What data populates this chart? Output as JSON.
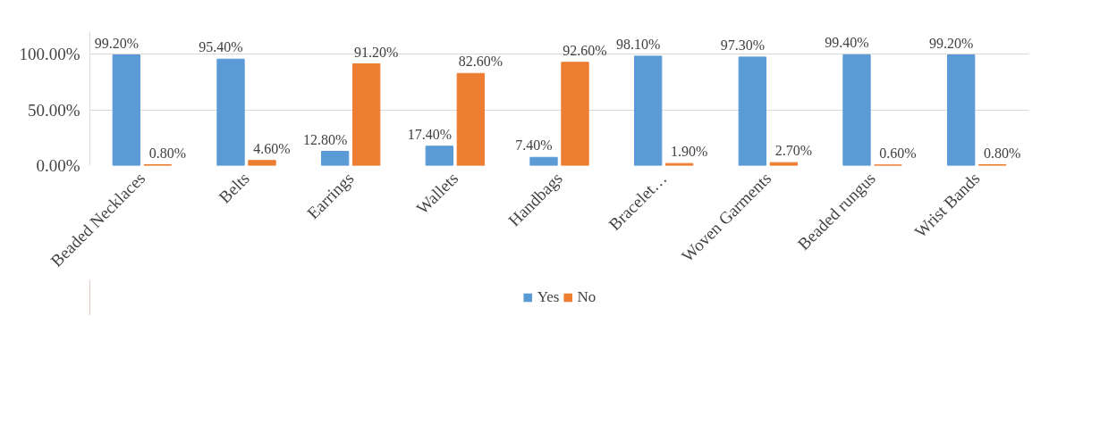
{
  "chart_data": {
    "type": "bar",
    "categories": [
      "Beaded Necklaces",
      "Belts",
      "Earrings",
      "Wallets",
      "Handbags",
      "Bracelet…",
      "Woven Garments",
      "Beaded rungus",
      "Wrist Bands"
    ],
    "series": [
      {
        "name": "Yes",
        "color": "#5b9bd5",
        "values": [
          99.2,
          95.4,
          12.8,
          17.4,
          7.4,
          98.1,
          97.3,
          99.4,
          99.2
        ],
        "value_labels": [
          "99.20%",
          "95.40%",
          "12.80%",
          "17.40%",
          "7.40%",
          "98.10%",
          "97.30%",
          "99.40%",
          "99.20%"
        ]
      },
      {
        "name": "No",
        "color": "#ed7d31",
        "values": [
          0.8,
          4.6,
          91.2,
          82.6,
          92.6,
          1.9,
          2.7,
          0.6,
          0.8
        ],
        "value_labels": [
          "0.80%",
          "4.60%",
          "91.20%",
          "82.60%",
          "92.60%",
          "1.90%",
          "2.70%",
          "0.60%",
          "0.80%"
        ]
      }
    ],
    "ylim": [
      0,
      120
    ],
    "yticks": [
      {
        "value": 0,
        "label": "0.00%"
      },
      {
        "value": 50,
        "label": "50.00%"
      },
      {
        "value": 100,
        "label": "100.00%"
      }
    ],
    "grid": "y",
    "legend": "bottom"
  }
}
